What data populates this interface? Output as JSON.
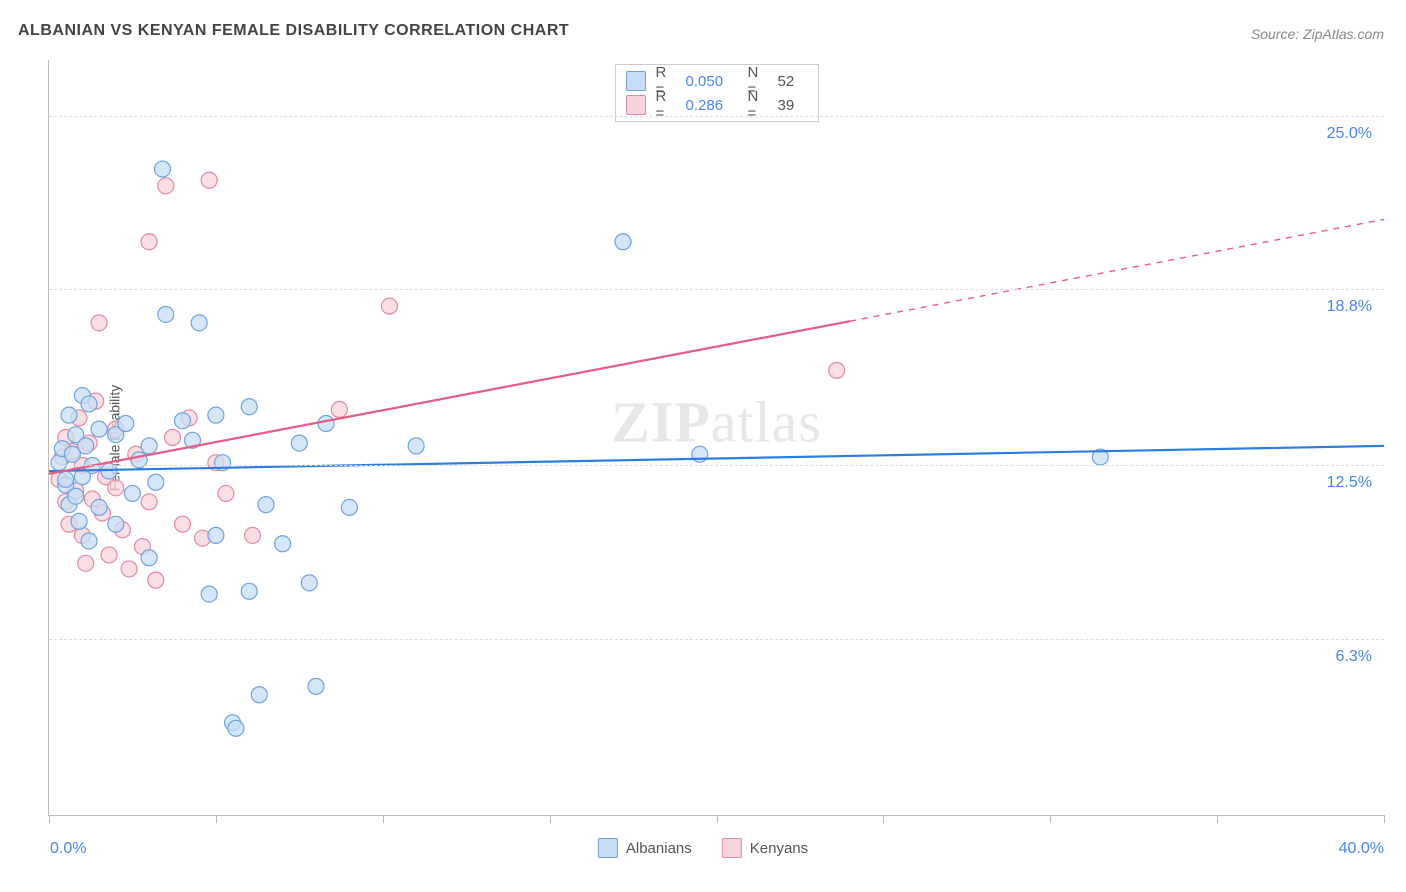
{
  "title": "ALBANIAN VS KENYAN FEMALE DISABILITY CORRELATION CHART",
  "source_label": "Source: ZipAtlas.com",
  "watermark": {
    "bold": "ZIP",
    "rest": "atlas"
  },
  "ylabel": "Female Disability",
  "chart": {
    "type": "scatter",
    "xlim": [
      0,
      40
    ],
    "ylim": [
      0,
      27
    ],
    "x_min_label": "0.0%",
    "x_max_label": "40.0%",
    "y_ticks": [
      {
        "value": 6.3,
        "label": "6.3%"
      },
      {
        "value": 12.5,
        "label": "12.5%"
      },
      {
        "value": 18.8,
        "label": "18.8%"
      },
      {
        "value": 25.0,
        "label": "25.0%"
      }
    ],
    "x_tick_values": [
      0,
      5,
      10,
      15,
      20,
      25,
      30,
      35,
      40
    ],
    "grid_color": "#dddddd",
    "axis_color": "#bbbbbb",
    "background_color": "#ffffff",
    "y_tick_label_color": "#4a86e8",
    "x_label_color": "#4a86e8",
    "marker_radius": 8,
    "marker_stroke_width": 1.2,
    "line_width": 2.2,
    "series": [
      {
        "name": "Albanians",
        "fill_color": "#c7ddf5",
        "stroke_color": "#6fa3e0",
        "line_color": "#2b7de0",
        "R": "0.050",
        "N": "52",
        "trend": {
          "x1": 0,
          "y1": 12.3,
          "x2": 40,
          "y2": 13.2,
          "solid_until_x": 40
        },
        "points": [
          [
            0.3,
            12.6
          ],
          [
            0.4,
            13.1
          ],
          [
            0.5,
            11.8
          ],
          [
            0.5,
            12.0
          ],
          [
            0.6,
            14.3
          ],
          [
            0.6,
            11.1
          ],
          [
            0.7,
            12.9
          ],
          [
            0.8,
            13.6
          ],
          [
            0.8,
            11.4
          ],
          [
            0.9,
            10.5
          ],
          [
            1.0,
            12.1
          ],
          [
            1.0,
            15.0
          ],
          [
            1.1,
            13.2
          ],
          [
            1.2,
            14.7
          ],
          [
            1.2,
            9.8
          ],
          [
            1.3,
            12.5
          ],
          [
            1.5,
            11.0
          ],
          [
            1.5,
            13.8
          ],
          [
            1.8,
            12.3
          ],
          [
            2.0,
            13.6
          ],
          [
            2.0,
            10.4
          ],
          [
            2.3,
            14.0
          ],
          [
            2.5,
            11.5
          ],
          [
            2.7,
            12.7
          ],
          [
            3.0,
            9.2
          ],
          [
            3.0,
            13.2
          ],
          [
            3.2,
            11.9
          ],
          [
            3.4,
            23.1
          ],
          [
            3.5,
            17.9
          ],
          [
            4.0,
            14.1
          ],
          [
            4.3,
            13.4
          ],
          [
            4.5,
            17.6
          ],
          [
            4.8,
            7.9
          ],
          [
            5.0,
            14.3
          ],
          [
            5.0,
            10.0
          ],
          [
            5.2,
            12.6
          ],
          [
            5.5,
            3.3
          ],
          [
            5.6,
            3.1
          ],
          [
            6.0,
            8.0
          ],
          [
            6.0,
            14.6
          ],
          [
            6.3,
            4.3
          ],
          [
            6.5,
            11.1
          ],
          [
            7.0,
            9.7
          ],
          [
            7.5,
            13.3
          ],
          [
            7.8,
            8.3
          ],
          [
            8.0,
            4.6
          ],
          [
            8.3,
            14.0
          ],
          [
            9.0,
            11.0
          ],
          [
            11.0,
            13.2
          ],
          [
            17.2,
            20.5
          ],
          [
            19.5,
            12.9
          ],
          [
            31.5,
            12.8
          ]
        ]
      },
      {
        "name": "Kenyans",
        "fill_color": "#f7d3db",
        "stroke_color": "#e38aa1",
        "line_color": "#e85c84",
        "R": "0.286",
        "N": "39",
        "trend": {
          "x1": 0,
          "y1": 12.2,
          "x2": 40,
          "y2": 21.3,
          "solid_until_x": 24
        },
        "points": [
          [
            0.3,
            12.0
          ],
          [
            0.4,
            12.8
          ],
          [
            0.5,
            11.2
          ],
          [
            0.5,
            13.5
          ],
          [
            0.6,
            10.4
          ],
          [
            0.7,
            13.0
          ],
          [
            0.8,
            11.6
          ],
          [
            0.9,
            14.2
          ],
          [
            1.0,
            12.5
          ],
          [
            1.0,
            10.0
          ],
          [
            1.1,
            9.0
          ],
          [
            1.2,
            13.3
          ],
          [
            1.3,
            11.3
          ],
          [
            1.4,
            14.8
          ],
          [
            1.5,
            17.6
          ],
          [
            1.6,
            10.8
          ],
          [
            1.7,
            12.1
          ],
          [
            1.8,
            9.3
          ],
          [
            2.0,
            13.8
          ],
          [
            2.0,
            11.7
          ],
          [
            2.2,
            10.2
          ],
          [
            2.4,
            8.8
          ],
          [
            2.6,
            12.9
          ],
          [
            2.8,
            9.6
          ],
          [
            3.0,
            20.5
          ],
          [
            3.0,
            11.2
          ],
          [
            3.2,
            8.4
          ],
          [
            3.5,
            22.5
          ],
          [
            3.7,
            13.5
          ],
          [
            4.0,
            10.4
          ],
          [
            4.2,
            14.2
          ],
          [
            4.6,
            9.9
          ],
          [
            4.8,
            22.7
          ],
          [
            5.0,
            12.6
          ],
          [
            5.3,
            11.5
          ],
          [
            6.1,
            10.0
          ],
          [
            8.7,
            14.5
          ],
          [
            10.2,
            18.2
          ],
          [
            23.6,
            15.9
          ]
        ]
      }
    ],
    "legend_bottom": [
      {
        "label": "Albanians",
        "fill": "#c7ddf5",
        "stroke": "#6fa3e0"
      },
      {
        "label": "Kenyans",
        "fill": "#f7d3db",
        "stroke": "#e38aa1"
      }
    ]
  }
}
